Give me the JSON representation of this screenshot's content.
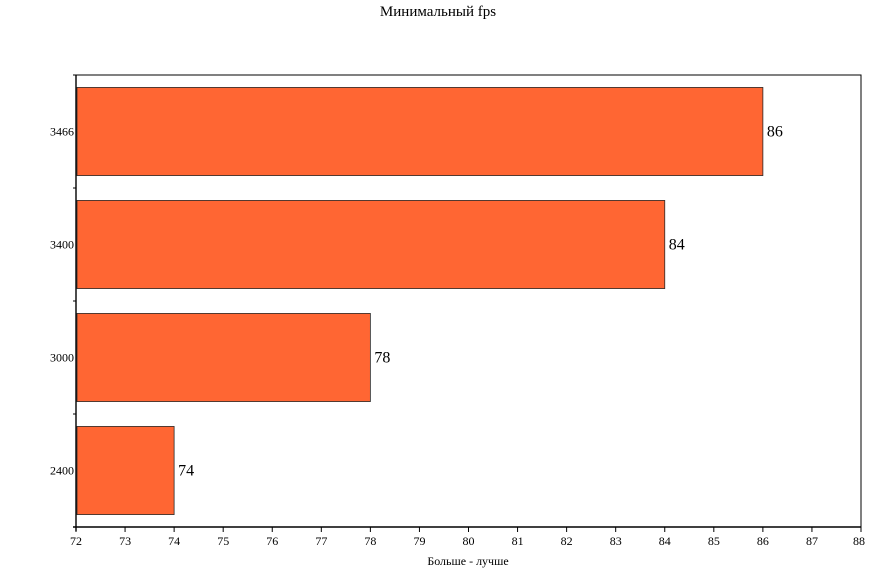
{
  "chart_data": {
    "type": "bar",
    "orientation": "horizontal",
    "title": "Минимальный fps",
    "xlabel": "Больше - лучше",
    "ylabel": "",
    "categories": [
      "3466",
      "3400",
      "3000",
      "2400"
    ],
    "values": [
      86,
      84,
      78,
      74
    ],
    "xlim": [
      72,
      88
    ],
    "xticks": [
      72,
      73,
      74,
      75,
      76,
      77,
      78,
      79,
      80,
      81,
      82,
      83,
      84,
      85,
      86,
      87,
      88
    ],
    "data_labels": true,
    "grid": false,
    "legend": false,
    "bar_color": "#ff6633"
  }
}
